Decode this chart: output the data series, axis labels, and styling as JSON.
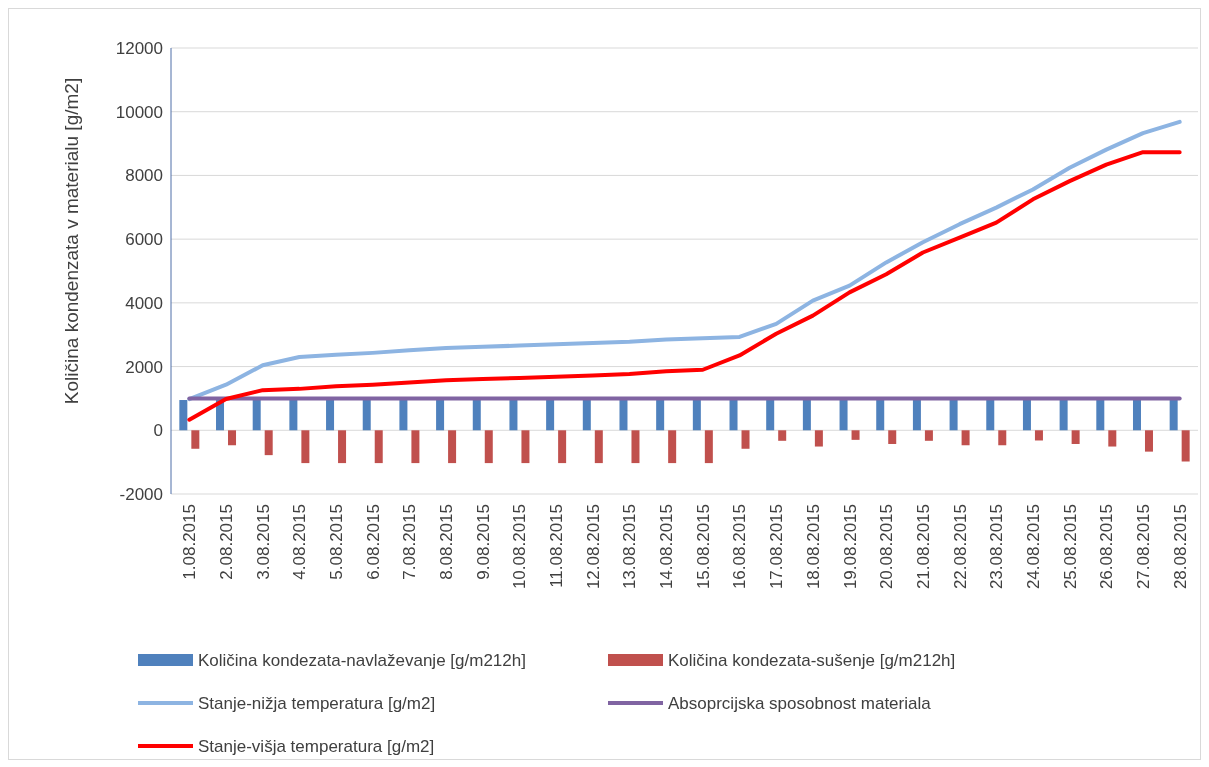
{
  "chart_data": {
    "type": "bar",
    "ylabel": "Količina kondenzata v materialu [g/m2]",
    "categories": [
      "1.08.2015",
      "2.08.2015",
      "3.08.2015",
      "4.08.2015",
      "5.08.2015",
      "6.08.2015",
      "7.08.2015",
      "8.08.2015",
      "9.08.2015",
      "10.08.2015",
      "11.08.2015",
      "12.08.2015",
      "13.08.2015",
      "14.08.2015",
      "15.08.2015",
      "16.08.2015",
      "17.08.2015",
      "18.08.2015",
      "19.08.2015",
      "20.08.2015",
      "21.08.2015",
      "22.08.2015",
      "23.08.2015",
      "24.08.2015",
      "25.08.2015",
      "26.08.2015",
      "27.08.2015",
      "28.08.2015"
    ],
    "series": [
      {
        "name": "Količina kondezata-navlaževanje [g/m212h]",
        "color": "#4f81bd",
        "values": [
          950,
          950,
          950,
          950,
          950,
          950,
          950,
          950,
          950,
          950,
          950,
          950,
          950,
          950,
          950,
          950,
          950,
          950,
          950,
          950,
          950,
          950,
          950,
          950,
          950,
          950,
          950,
          950
        ]
      },
      {
        "name": "Količina kondezata-sušenje [g/m212h]",
        "color": "#c0504d",
        "values": [
          -580,
          -470,
          -780,
          -1030,
          -1030,
          -1030,
          -1030,
          -1030,
          -1030,
          -1030,
          -1030,
          -1030,
          -1030,
          -1030,
          -1030,
          -580,
          -330,
          -510,
          -300,
          -430,
          -330,
          -470,
          -470,
          -320,
          -430,
          -510,
          -670,
          -980
        ]
      },
      {
        "name": "Stanje-nižja temperatura [g/m2]",
        "type": "line",
        "color": "#8db4e2",
        "values": [
          980,
          1430,
          2040,
          2300,
          2370,
          2430,
          2510,
          2580,
          2620,
          2660,
          2700,
          2740,
          2780,
          2850,
          2890,
          2930,
          3340,
          4070,
          4540,
          5270,
          5900,
          6470,
          6990,
          7560,
          8240,
          8810,
          9330,
          9680
        ]
      },
      {
        "name": "Absoprcijska sposobnost materiala",
        "type": "line",
        "color": "#8064a2",
        "values": [
          1000,
          1000,
          1000,
          1000,
          1000,
          1000,
          1000,
          1000,
          1000,
          1000,
          1000,
          1000,
          1000,
          1000,
          1000,
          1000,
          1000,
          1000,
          1000,
          1000,
          1000,
          1000,
          1000,
          1000,
          1000,
          1000,
          1000,
          1000
        ]
      },
      {
        "name": "Stanje-višja temperatura [g/m2]",
        "type": "line",
        "color": "#ff0000",
        "values": [
          330,
          980,
          1260,
          1300,
          1380,
          1430,
          1500,
          1570,
          1610,
          1640,
          1680,
          1720,
          1770,
          1850,
          1900,
          2350,
          3030,
          3600,
          4330,
          4900,
          5580,
          6050,
          6520,
          7250,
          7820,
          8340,
          8730,
          8730
        ]
      }
    ],
    "ylim": [
      -2000,
      12000
    ],
    "yticks": [
      -2000,
      0,
      2000,
      4000,
      6000,
      8000,
      10000,
      12000
    ],
    "grid": "y",
    "legend": "bottom"
  }
}
